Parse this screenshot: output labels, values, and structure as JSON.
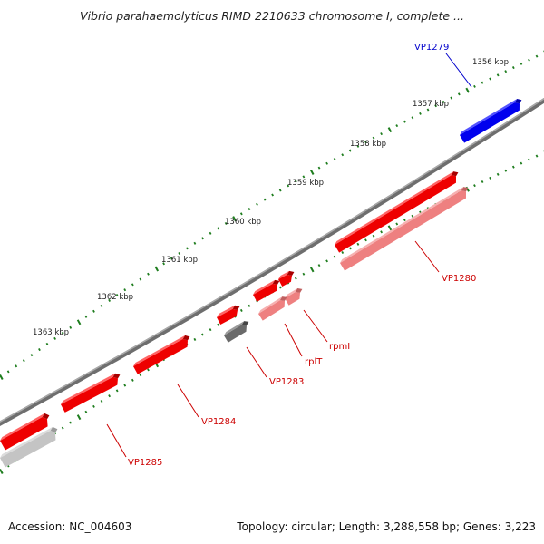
{
  "title": "Vibrio parahaemolyticus RIMD 2210633 chromosome I, complete ...",
  "footer": {
    "accession": "Accession: NC_004603",
    "summary": "Topology: circular; Length: 3,288,558 bp; Genes: 3,223"
  },
  "scale_ticks": [
    {
      "kbp": 1356,
      "label": "1356 kbp"
    },
    {
      "kbp": 1357,
      "label": "1357 kbp"
    },
    {
      "kbp": 1358,
      "label": "1358 kbp"
    },
    {
      "kbp": 1359,
      "label": "1359 kbp"
    },
    {
      "kbp": 1360,
      "label": "1360 kbp"
    },
    {
      "kbp": 1361,
      "label": "1361 kbp"
    },
    {
      "kbp": 1362,
      "label": "1362 kbp"
    },
    {
      "kbp": 1363,
      "label": "1363 kbp"
    }
  ],
  "genes": [
    {
      "name": "VP1279",
      "strand": "forward",
      "category": "blue"
    },
    {
      "name": "VP1280",
      "strand": "reverse",
      "category": "red"
    },
    {
      "name": "rpmI",
      "strand": "reverse",
      "category": "red"
    },
    {
      "name": "rplT",
      "strand": "reverse",
      "category": "red"
    },
    {
      "name": "VP1283",
      "strand": "reverse",
      "category": "gray"
    },
    {
      "name": "VP1284",
      "strand": "reverse",
      "category": "red"
    },
    {
      "name": "VP1285",
      "strand": "reverse",
      "category": "gray"
    }
  ],
  "colors": {
    "backbone": "#808080",
    "tick": "#1e7d1e",
    "forward_gene": "#0000ee",
    "reverse_gene": "#ee0000",
    "gray_gene": "#666666",
    "label_blue": "#0000cc",
    "label_red": "#cc0000"
  }
}
